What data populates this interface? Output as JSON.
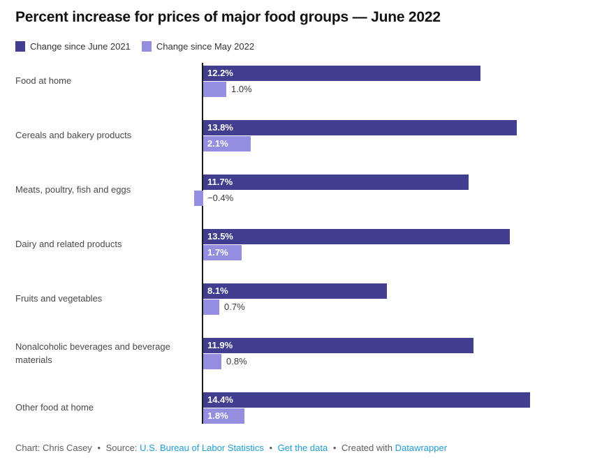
{
  "title": "Percent increase for prices of major food groups — June 2022",
  "legend": {
    "items": [
      {
        "label": "Change since June 2021",
        "color": "#413E90"
      },
      {
        "label": "Change since May 2022",
        "color": "#948EE1"
      }
    ]
  },
  "chart_data": {
    "type": "bar",
    "orientation": "horizontal",
    "title": "Percent increase for prices of major food groups — June 2022",
    "categories": [
      "Food at home",
      "Cereals and bakery products",
      "Meats, poultry, fish and eggs",
      "Dairy and related products",
      "Fruits and vegetables",
      "Nonalcoholic beverages and beverage materials",
      "Other food at home"
    ],
    "series": [
      {
        "name": "Change since June 2021",
        "color": "#413E90",
        "values": [
          12.2,
          13.8,
          11.7,
          13.5,
          8.1,
          11.9,
          14.4
        ],
        "labels": [
          "12.2%",
          "13.8%",
          "11.7%",
          "13.5%",
          "8.1%",
          "11.9%",
          "14.4%"
        ]
      },
      {
        "name": "Change since May 2022",
        "color": "#948EE1",
        "values": [
          1.0,
          2.1,
          -0.4,
          1.7,
          0.7,
          0.8,
          1.8
        ],
        "labels": [
          "1.0%",
          "2.1%",
          "−0.4%",
          "1.7%",
          "0.7%",
          "0.8%",
          "1.8%"
        ]
      }
    ],
    "xlabel": "",
    "ylabel": "",
    "xlim": [
      -0.5,
      17.3
    ],
    "grid": false,
    "axis_ticks_visible": false,
    "legend_position": "top-left",
    "value_label_format": "0.0%",
    "colors": {
      "inside_label": "#ffffff",
      "outside_label": "#3a3a3a",
      "baseline": "#1a1a1a"
    }
  },
  "footer": {
    "chart_credit": "Chart: Chris Casey",
    "separator": "•",
    "source_label": "Source:",
    "source_link": "U.S. Bureau of Labor Statistics",
    "get_data_link": "Get the data",
    "created_with_label": "Created with",
    "tool_link": "Datawrapper",
    "link_color": "#219CD6"
  }
}
